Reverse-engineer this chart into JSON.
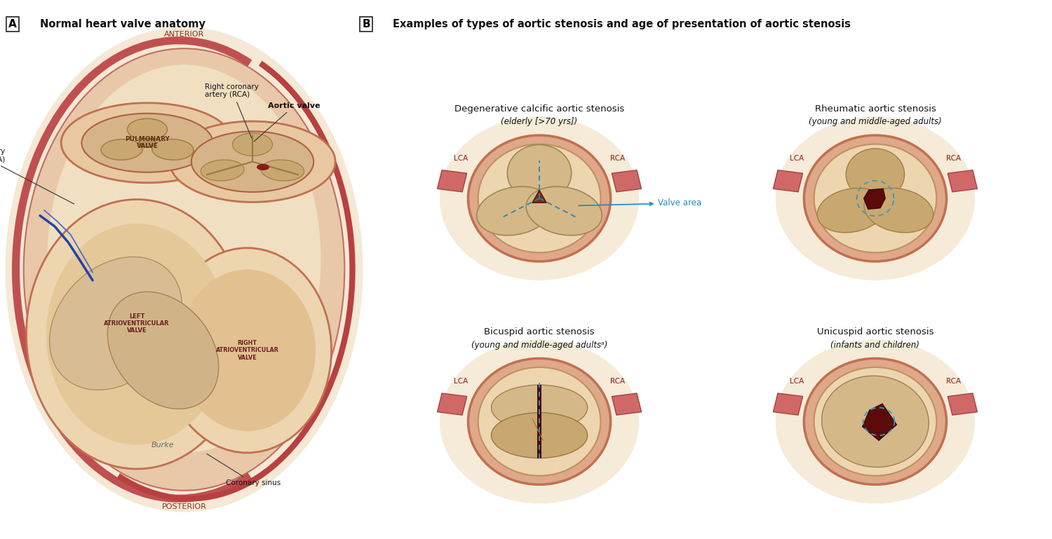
{
  "fig_width": 15.0,
  "fig_height": 7.69,
  "dpi": 100,
  "bg_color": "#ffffff",
  "panel_a_label": "A",
  "panel_b_label": "B",
  "panel_a_title": "Normal heart valve anatomy",
  "panel_b_title": "Examples of types of aortic stenosis and age of presentation of aortic stenosis",
  "border_color": "#333333",
  "text_color": "#222222",
  "valve_line_color": "#2288BB",
  "blue_dot_color": "#3399CC",
  "anterior_text": "ANTERIOR",
  "posterior_text": "POSTERIOR",
  "lca_text": "Left coronary\nartery (LCA)",
  "rca_text": "Right coronary\nartery (RCA)",
  "aortic_valve_text": "Aortic valve",
  "coronary_sinus_text": "Coronary sinus",
  "valve_area_text": "Valve area",
  "deg_title": "Degenerative calcific aortic stenosis",
  "deg_subtitle": "(elderly [>70 yrs])",
  "rheum_title": "Rheumatic aortic stenosis",
  "rheum_subtitle": "(young and middle-aged adults)",
  "bicuspid_title": "Bicuspid aortic stenosis",
  "bicuspid_subtitle": "(young and middle-aged adultsᵃ)",
  "unicuspid_title": "Unicuspid aortic stenosis",
  "unicuspid_subtitle": "(infants and children)"
}
